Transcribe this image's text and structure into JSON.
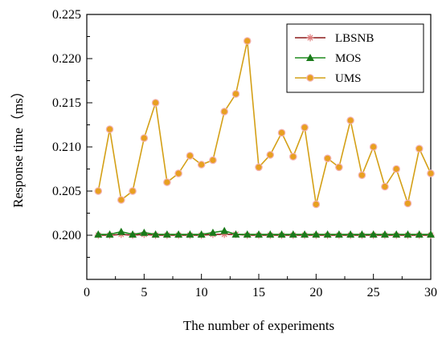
{
  "chart_data": {
    "type": "line",
    "title": "",
    "xlabel": "The number of experiments",
    "ylabel": "Response time（ms）",
    "xlim": [
      0,
      30
    ],
    "ylim": [
      0.195,
      0.225
    ],
    "xticks": [
      0,
      5,
      10,
      15,
      20,
      25,
      30
    ],
    "xtick_labels": [
      "0",
      "5",
      "10",
      "15",
      "20",
      "25",
      "30"
    ],
    "yticks": [
      0.2,
      0.205,
      0.21,
      0.215,
      0.22,
      0.225
    ],
    "ytick_labels": [
      "0.200",
      "0.205",
      "0.210",
      "0.215",
      "0.220",
      "0.225"
    ],
    "grid": false,
    "legend_position": "top-right",
    "x": [
      1,
      2,
      3,
      4,
      5,
      6,
      7,
      8,
      9,
      10,
      11,
      12,
      13,
      14,
      15,
      16,
      17,
      18,
      19,
      20,
      21,
      22,
      23,
      24,
      25,
      26,
      27,
      28,
      29,
      30
    ],
    "series": [
      {
        "name": "LBSNB",
        "marker": "asterisk",
        "line_color": "#8b1a1a",
        "marker_color": "#e07a7a",
        "values": [
          0.2,
          0.2,
          0.2001,
          0.2,
          0.2001,
          0.2,
          0.2,
          0.2,
          0.2,
          0.2,
          0.2001,
          0.2001,
          0.2001,
          0.2,
          0.2,
          0.2,
          0.2,
          0.2,
          0.2,
          0.2,
          0.2,
          0.2,
          0.2,
          0.2,
          0.2,
          0.2,
          0.2,
          0.2,
          0.2,
          0.2
        ]
      },
      {
        "name": "MOS",
        "marker": "triangle",
        "line_color": "#1e8c1e",
        "marker_color": "#1a7a1a",
        "values": [
          0.2001,
          0.2001,
          0.2004,
          0.2001,
          0.2003,
          0.2001,
          0.2001,
          0.2001,
          0.2001,
          0.2001,
          0.2003,
          0.2005,
          0.2001,
          0.2001,
          0.2001,
          0.2001,
          0.2001,
          0.2001,
          0.2001,
          0.2001,
          0.2001,
          0.2001,
          0.2001,
          0.2001,
          0.2001,
          0.2001,
          0.2001,
          0.2001,
          0.2001,
          0.2001
        ]
      },
      {
        "name": "UMS",
        "marker": "circle",
        "line_color": "#d4a017",
        "marker_color": "#e8a020",
        "values": [
          0.205,
          0.212,
          0.204,
          0.205,
          0.211,
          0.215,
          0.206,
          0.207,
          0.209,
          0.208,
          0.2085,
          0.214,
          0.216,
          0.222,
          0.2077,
          0.2091,
          0.2116,
          0.2089,
          0.2122,
          0.2035,
          0.2087,
          0.2077,
          0.213,
          0.2068,
          0.21,
          0.2055,
          0.2075,
          0.2036,
          0.2098,
          0.207
        ]
      }
    ]
  }
}
